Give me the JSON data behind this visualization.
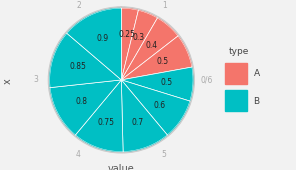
{
  "xlabel": "value",
  "ylabel": "x",
  "type_A_values": [
    0.25,
    0.3,
    0.4,
    0.5
  ],
  "type_B_values": [
    0.5,
    0.6,
    0.7,
    0.75,
    0.8,
    0.85,
    0.9
  ],
  "color_A": "#F4756B",
  "color_B": "#00BFC4",
  "bg_color": "#E8E8E8",
  "plot_bg": "#EBEBEB",
  "legend_title": "type",
  "legend_A": "A",
  "legend_B": "B",
  "outer_circle_color": "#CCCCCC",
  "tick_color": "#AAAAAA",
  "tick_labels": [
    "0/6",
    "1",
    "2",
    "3",
    "4",
    "5"
  ],
  "tick_positions_deg": [
    90,
    30,
    330,
    270,
    210,
    150
  ],
  "label_fontsize": 5.5,
  "tick_fontsize": 5.5,
  "legend_fontsize": 6.5
}
